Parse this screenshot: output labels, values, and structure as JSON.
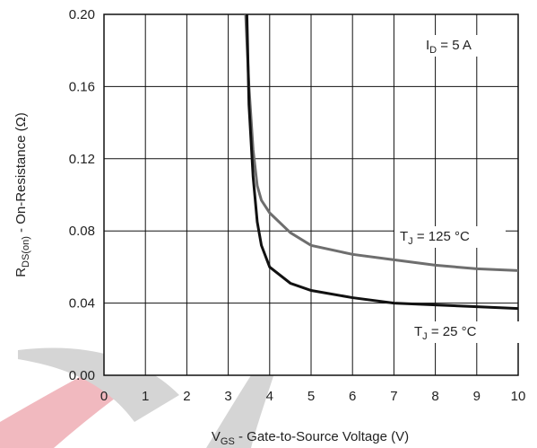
{
  "chart_data": {
    "type": "line",
    "x_label": {
      "main": "V",
      "sub": "GS",
      "rest": " - Gate-to-Source Voltage (V)"
    },
    "y_label": {
      "main": "R",
      "sub": "DS(on)",
      "rest": " - On-Resistance (Ω)"
    },
    "annotation": {
      "main": "I",
      "sub": "D",
      "rest": " = 5 A"
    },
    "series": [
      {
        "label": [
          "T",
          "J",
          " = 125 °C"
        ],
        "color": "#6e6e6e",
        "x": [
          3.42,
          3.5,
          3.6,
          3.7,
          3.8,
          4,
          4.5,
          5,
          6,
          7,
          8,
          9,
          10
        ],
        "values": [
          0.2,
          0.16,
          0.125,
          0.105,
          0.097,
          0.09,
          0.079,
          0.072,
          0.067,
          0.064,
          0.061,
          0.059,
          0.058
        ]
      },
      {
        "label": [
          "T",
          "J",
          " = 25 °C"
        ],
        "color": "#111111",
        "x": [
          3.45,
          3.5,
          3.6,
          3.7,
          3.8,
          4,
          4.5,
          5,
          6,
          7,
          8,
          9,
          10
        ],
        "values": [
          0.2,
          0.15,
          0.11,
          0.085,
          0.072,
          0.06,
          0.051,
          0.047,
          0.043,
          0.04,
          0.039,
          0.038,
          0.037
        ]
      }
    ],
    "xlim": [
      0,
      10
    ],
    "xticks": [
      0,
      1,
      2,
      3,
      4,
      5,
      6,
      7,
      8,
      9,
      10
    ],
    "ylim": [
      0,
      0.2
    ],
    "yticks": [
      {
        "value": 0,
        "label": "0.00"
      },
      {
        "value": 0.04,
        "label": "0.04"
      },
      {
        "value": 0.08,
        "label": "0.08"
      },
      {
        "value": 0.12,
        "label": "0.12"
      },
      {
        "value": 0.16,
        "label": "0.16"
      },
      {
        "value": 0.2,
        "label": "0.20"
      }
    ],
    "grid": true
  }
}
